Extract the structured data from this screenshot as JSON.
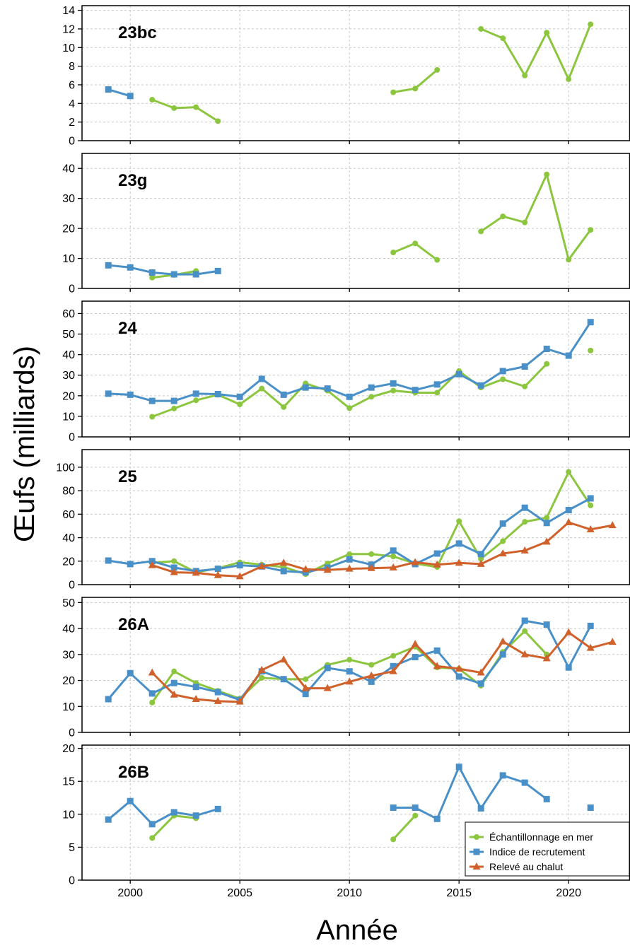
{
  "chart_data": {
    "type": "line",
    "xlabel": "Année",
    "ylabel": "Œufs (milliards)",
    "xlim": [
      1997.8,
      2022.8
    ],
    "x_ticks": [
      2000,
      2005,
      2010,
      2015,
      2020
    ],
    "grid": true,
    "legend_position": "bottom-right of last panel",
    "series_styles": [
      {
        "key": "sea",
        "name": "Échantillonnage en mer",
        "color": "#8cc63f",
        "marker": "circle"
      },
      {
        "key": "rec",
        "name": "Indice de recrutement",
        "color": "#4a90c8",
        "marker": "square"
      },
      {
        "key": "trawl",
        "name": "Relevé au chalut",
        "color": "#d0612b",
        "marker": "triangle"
      }
    ],
    "panels": [
      {
        "label": "23bc",
        "ylim": [
          0,
          14.5
        ],
        "y_ticks": [
          0,
          2,
          4,
          6,
          8,
          10,
          12,
          14
        ],
        "series": {
          "sea": [
            [
              2001,
              4.4
            ],
            [
              2002,
              3.5
            ],
            [
              2003,
              3.6
            ],
            [
              2004,
              2.1
            ],
            [
              2012,
              5.2
            ],
            [
              2013,
              5.6
            ],
            [
              2014,
              7.6
            ],
            [
              2016,
              12.0
            ],
            [
              2017,
              11.0
            ],
            [
              2018,
              7.0
            ],
            [
              2019,
              11.6
            ],
            [
              2020,
              6.6
            ],
            [
              2021,
              12.5
            ]
          ],
          "rec": [
            [
              1999,
              5.5
            ],
            [
              2000,
              4.8
            ]
          ],
          "trawl": []
        }
      },
      {
        "label": "23g",
        "ylim": [
          0,
          45
        ],
        "y_ticks": [
          0,
          10,
          20,
          30,
          40
        ],
        "series": {
          "sea": [
            [
              2001,
              3.6
            ],
            [
              2002,
              4.5
            ],
            [
              2003,
              5.8
            ],
            [
              2012,
              12.0
            ],
            [
              2013,
              15.0
            ],
            [
              2014,
              9.5
            ],
            [
              2016,
              19.0
            ],
            [
              2017,
              24.0
            ],
            [
              2018,
              22.0
            ],
            [
              2019,
              38.0
            ],
            [
              2020,
              9.6
            ],
            [
              2021,
              19.5
            ]
          ],
          "rec": [
            [
              1999,
              7.7
            ],
            [
              2000,
              7.0
            ],
            [
              2001,
              5.3
            ],
            [
              2002,
              4.7
            ],
            [
              2003,
              4.7
            ],
            [
              2004,
              5.8
            ]
          ],
          "trawl": []
        }
      },
      {
        "label": "24",
        "ylim": [
          0,
          66
        ],
        "y_ticks": [
          0,
          10,
          20,
          30,
          40,
          50,
          60
        ],
        "series": {
          "sea": [
            [
              2001,
              9.8
            ],
            [
              2002,
              13.8
            ],
            [
              2003,
              17.8
            ],
            [
              2004,
              20.5
            ],
            [
              2005,
              15.8
            ],
            [
              2006,
              23.5
            ],
            [
              2007,
              14.5
            ],
            [
              2008,
              26.0
            ],
            [
              2009,
              22.5
            ],
            [
              2010,
              14.0
            ],
            [
              2011,
              19.5
            ],
            [
              2012,
              22.5
            ],
            [
              2013,
              21.5
            ],
            [
              2014,
              21.5
            ],
            [
              2015,
              32.0
            ],
            [
              2016,
              24.0
            ],
            [
              2017,
              28.0
            ],
            [
              2018,
              24.5
            ],
            [
              2019,
              35.5
            ],
            [
              2021,
              42.0
            ]
          ],
          "rec": [
            [
              1999,
              21.0
            ],
            [
              2000,
              20.5
            ],
            [
              2001,
              17.5
            ],
            [
              2002,
              17.5
            ],
            [
              2003,
              21.0
            ],
            [
              2004,
              20.8
            ],
            [
              2005,
              19.5
            ],
            [
              2006,
              28.2
            ],
            [
              2007,
              20.5
            ],
            [
              2008,
              24.0
            ],
            [
              2009,
              23.5
            ],
            [
              2010,
              19.5
            ],
            [
              2011,
              24.0
            ],
            [
              2012,
              26.0
            ],
            [
              2013,
              22.8
            ],
            [
              2014,
              25.5
            ],
            [
              2015,
              30.5
            ],
            [
              2016,
              25.0
            ],
            [
              2017,
              32.0
            ],
            [
              2018,
              34.2
            ],
            [
              2019,
              42.8
            ],
            [
              2020,
              39.5
            ],
            [
              2021,
              55.8
            ]
          ],
          "trawl": []
        }
      },
      {
        "label": "25",
        "ylim": [
          0,
          115
        ],
        "y_ticks": [
          0,
          20,
          40,
          60,
          80,
          100
        ],
        "series": {
          "sea": [
            [
              2001,
              18.5
            ],
            [
              2002,
              20.0
            ],
            [
              2003,
              10.5
            ],
            [
              2004,
              14.0
            ],
            [
              2005,
              19.0
            ],
            [
              2006,
              17.0
            ],
            [
              2007,
              15.0
            ],
            [
              2008,
              9.0
            ],
            [
              2009,
              18.0
            ],
            [
              2010,
              26.0
            ],
            [
              2011,
              26.0
            ],
            [
              2012,
              24.0
            ],
            [
              2013,
              18.0
            ],
            [
              2014,
              15.0
            ],
            [
              2015,
              54.0
            ],
            [
              2016,
              22.0
            ],
            [
              2017,
              37.0
            ],
            [
              2018,
              53.5
            ],
            [
              2019,
              57.0
            ],
            [
              2020,
              96.0
            ],
            [
              2021,
              67.5
            ]
          ],
          "rec": [
            [
              1999,
              20.5
            ],
            [
              2000,
              17.5
            ],
            [
              2001,
              20.0
            ],
            [
              2002,
              14.5
            ],
            [
              2003,
              11.5
            ],
            [
              2004,
              13.5
            ],
            [
              2005,
              16.5
            ],
            [
              2006,
              15.5
            ],
            [
              2007,
              11.5
            ],
            [
              2008,
              10.5
            ],
            [
              2009,
              14.5
            ],
            [
              2010,
              21.5
            ],
            [
              2011,
              17.0
            ],
            [
              2012,
              29.0
            ],
            [
              2013,
              17.5
            ],
            [
              2014,
              26.5
            ],
            [
              2015,
              35.0
            ],
            [
              2016,
              26.0
            ],
            [
              2017,
              52.0
            ],
            [
              2018,
              65.5
            ],
            [
              2019,
              52.5
            ],
            [
              2020,
              63.5
            ],
            [
              2021,
              73.5
            ]
          ],
          "trawl": [
            [
              2001,
              16.5
            ],
            [
              2002,
              10.5
            ],
            [
              2003,
              10.0
            ],
            [
              2004,
              8.0
            ],
            [
              2005,
              7.0
            ],
            [
              2006,
              15.5
            ],
            [
              2007,
              18.5
            ],
            [
              2008,
              13.0
            ],
            [
              2009,
              12.5
            ],
            [
              2010,
              13.5
            ],
            [
              2011,
              14.0
            ],
            [
              2012,
              14.5
            ],
            [
              2013,
              19.0
            ],
            [
              2014,
              17.0
            ],
            [
              2015,
              18.5
            ],
            [
              2016,
              17.5
            ],
            [
              2017,
              26.5
            ],
            [
              2018,
              29.0
            ],
            [
              2019,
              36.5
            ],
            [
              2020,
              53.0
            ],
            [
              2021,
              47.0
            ],
            [
              2022,
              50.5
            ]
          ]
        }
      },
      {
        "label": "26A",
        "ylim": [
          0,
          52
        ],
        "y_ticks": [
          0,
          10,
          20,
          30,
          40,
          50
        ],
        "series": {
          "sea": [
            [
              2001,
              11.5
            ],
            [
              2002,
              23.5
            ],
            [
              2003,
              19.0
            ],
            [
              2004,
              16.0
            ],
            [
              2005,
              13.0
            ],
            [
              2006,
              21.0
            ],
            [
              2007,
              20.5
            ],
            [
              2008,
              20.5
            ],
            [
              2009,
              26.0
            ],
            [
              2010,
              28.0
            ],
            [
              2011,
              26.0
            ],
            [
              2012,
              29.5
            ],
            [
              2013,
              33.0
            ],
            [
              2014,
              25.0
            ],
            [
              2015,
              24.5
            ],
            [
              2016,
              18.0
            ],
            [
              2017,
              31.0
            ],
            [
              2018,
              39.0
            ],
            [
              2019,
              30.0
            ]
          ],
          "rec": [
            [
              1999,
              12.8
            ],
            [
              2000,
              22.8
            ],
            [
              2001,
              15.0
            ],
            [
              2002,
              19.0
            ],
            [
              2003,
              17.5
            ],
            [
              2004,
              15.5
            ],
            [
              2005,
              12.5
            ],
            [
              2006,
              23.5
            ],
            [
              2007,
              20.5
            ],
            [
              2008,
              14.8
            ],
            [
              2009,
              24.8
            ],
            [
              2010,
              23.5
            ],
            [
              2011,
              19.5
            ],
            [
              2012,
              25.5
            ],
            [
              2013,
              29.0
            ],
            [
              2014,
              31.5
            ],
            [
              2015,
              21.5
            ],
            [
              2016,
              18.8
            ],
            [
              2017,
              30.0
            ],
            [
              2018,
              43.0
            ],
            [
              2019,
              41.5
            ],
            [
              2020,
              25.0
            ],
            [
              2021,
              41.0
            ]
          ],
          "trawl": [
            [
              2001,
              23.0
            ],
            [
              2002,
              14.5
            ],
            [
              2003,
              12.8
            ],
            [
              2004,
              12.0
            ],
            [
              2005,
              11.8
            ],
            [
              2006,
              24.0
            ],
            [
              2007,
              28.0
            ],
            [
              2008,
              17.0
            ],
            [
              2009,
              17.0
            ],
            [
              2010,
              19.5
            ],
            [
              2011,
              21.8
            ],
            [
              2012,
              23.5
            ],
            [
              2013,
              34.0
            ],
            [
              2014,
              25.5
            ],
            [
              2015,
              24.5
            ],
            [
              2016,
              23.0
            ],
            [
              2017,
              35.0
            ],
            [
              2018,
              30.0
            ],
            [
              2019,
              28.5
            ],
            [
              2020,
              38.5
            ],
            [
              2021,
              32.5
            ],
            [
              2022,
              34.8
            ]
          ]
        }
      },
      {
        "label": "26B",
        "ylim": [
          0,
          20.5
        ],
        "y_ticks": [
          0,
          5,
          10,
          15,
          20
        ],
        "series": {
          "sea": [
            [
              2001,
              6.4
            ],
            [
              2002,
              9.8
            ],
            [
              2003,
              9.4
            ],
            [
              2012,
              6.2
            ],
            [
              2013,
              9.8
            ]
          ],
          "rec": [
            [
              1999,
              9.2
            ],
            [
              2000,
              12.0
            ],
            [
              2001,
              8.5
            ],
            [
              2002,
              10.3
            ],
            [
              2003,
              9.8
            ],
            [
              2004,
              10.8
            ],
            [
              2012,
              11.0
            ],
            [
              2013,
              11.0
            ],
            [
              2014,
              9.3
            ],
            [
              2015,
              17.2
            ],
            [
              2016,
              10.9
            ],
            [
              2017,
              15.9
            ],
            [
              2018,
              14.8
            ],
            [
              2019,
              12.3
            ],
            [
              2021,
              11.0
            ]
          ],
          "trawl": []
        }
      }
    ]
  }
}
